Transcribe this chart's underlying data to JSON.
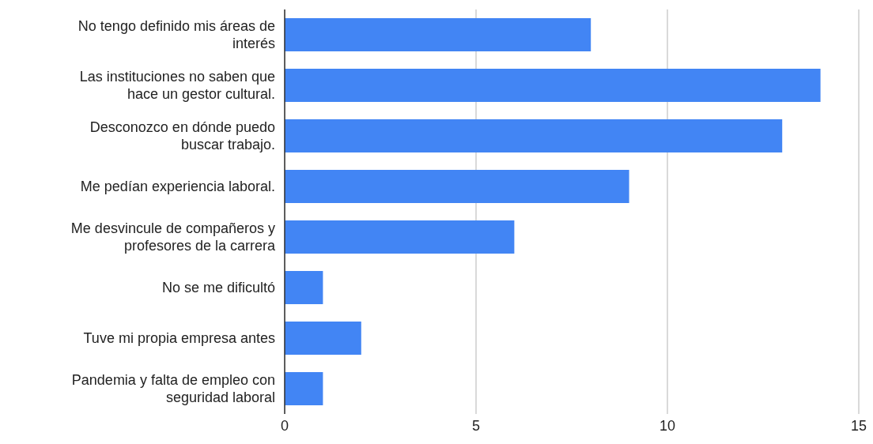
{
  "chart_data": {
    "type": "bar",
    "orientation": "horizontal",
    "categories": [
      "No tengo definido mis áreas de interés",
      "Las instituciones no saben que hace un gestor cultural.",
      "Desconozco en dónde puedo buscar trabajo.",
      "Me pedían experiencia laboral.",
      "Me desvincule de compañeros y profesores de la carrera",
      "No se me dificultó",
      "Tuve mi propia empresa antes",
      "Pandemia y falta de empleo con seguridad laboral"
    ],
    "values": [
      8,
      14,
      13,
      9,
      6,
      1,
      2,
      1
    ],
    "color": "#4285f4",
    "xlim": [
      0,
      15
    ],
    "xticks": [
      0,
      5,
      10,
      15
    ],
    "grid": "x"
  }
}
